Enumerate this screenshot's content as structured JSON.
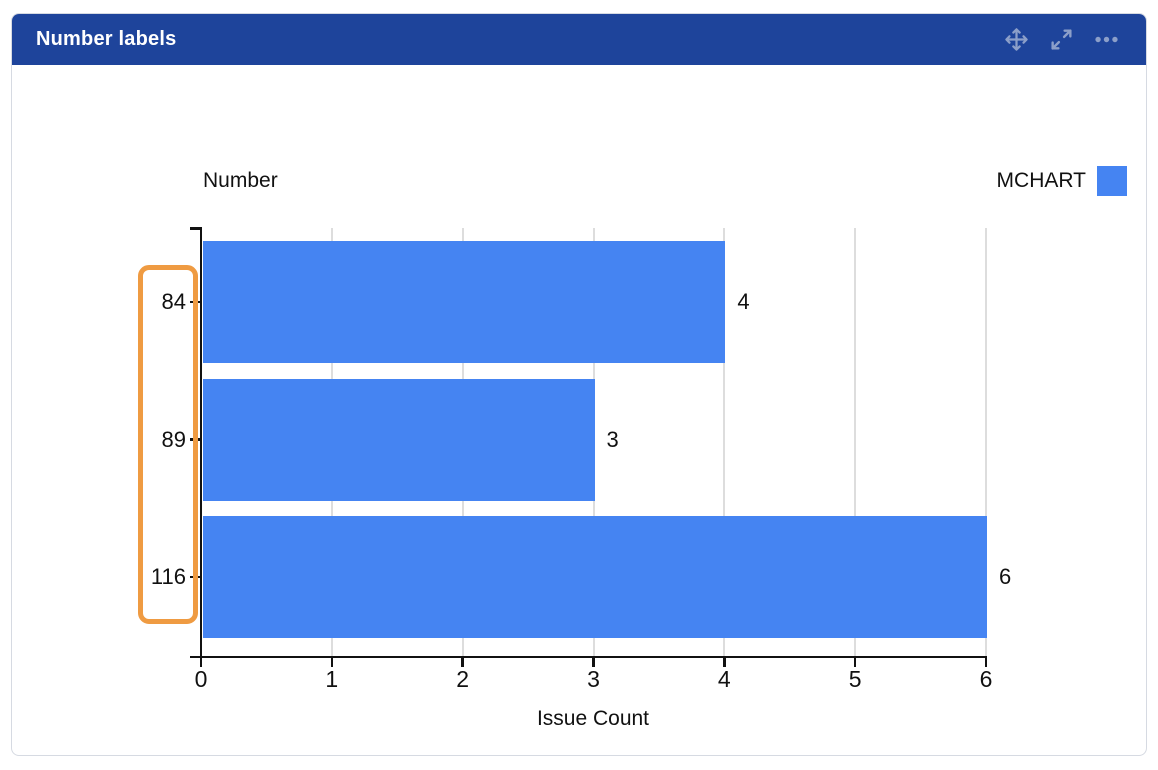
{
  "widget": {
    "title": "Number labels",
    "toolbar": {
      "move_icon": "move-gadget",
      "expand_icon": "expand-gadget",
      "more_icon": "more-options"
    }
  },
  "chart_data": {
    "type": "bar",
    "orientation": "horizontal",
    "axis_title": "Number",
    "categories": [
      "84",
      "89",
      "116"
    ],
    "series": [
      {
        "name": "MCHART",
        "color": "#4584f2",
        "values": [
          4,
          3,
          6
        ]
      }
    ],
    "bar_labels": [
      "4",
      "3",
      "6"
    ],
    "xlabel": "Issue Count",
    "xlim": [
      0,
      6
    ],
    "xticks": [
      "0",
      "1",
      "2",
      "3",
      "4",
      "5",
      "6"
    ],
    "grid": "vertical gridlines on",
    "legend": {
      "position": "top-right",
      "label": "MCHART",
      "swatch_color": "#4584f2"
    },
    "annotation": {
      "type": "highlight-box",
      "around": "y-axis category labels",
      "border_color": "#ef9b42"
    }
  },
  "colors": {
    "header_bg": "#1e449b",
    "header_text": "#ffffff",
    "header_icon": "#8c9fc9",
    "bar": "#4584f2",
    "gridline": "#dddddd",
    "axis": "#111111",
    "card_border": "#d6dae2",
    "highlight": "#ef9b42"
  }
}
